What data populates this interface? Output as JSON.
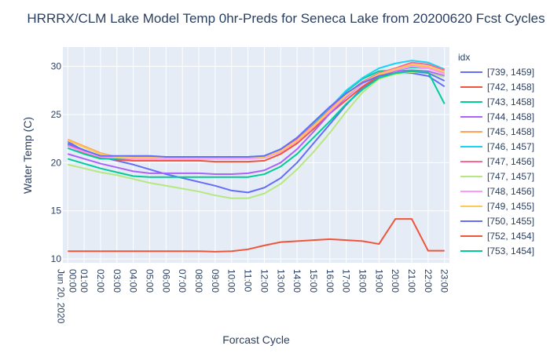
{
  "chart_data": {
    "type": "line",
    "title": "HRRRX/CLM Lake Model Temp 0hr-Preds for Seneca Lake from 20200620 Fcst Cycles",
    "xlabel": "Forcast Cycle",
    "ylabel": "Water Temp (C)",
    "x_tick_labels": [
      "00:00\nJun 20, 2020",
      "01:00",
      "02:00",
      "03:00",
      "04:00",
      "05:00",
      "06:00",
      "07:00",
      "08:00",
      "09:00",
      "10:00",
      "11:00",
      "12:00",
      "13:00",
      "14:00",
      "15:00",
      "16:00",
      "17:00",
      "18:00",
      "19:00",
      "20:00",
      "21:00",
      "22:00",
      "23:00"
    ],
    "x": [
      0,
      1,
      2,
      3,
      4,
      5,
      6,
      7,
      8,
      9,
      10,
      11,
      12,
      13,
      14,
      15,
      16,
      17,
      18,
      19,
      20,
      21,
      22,
      23
    ],
    "xlim": [
      -0.3,
      23.3
    ],
    "ylim": [
      9.6,
      32
    ],
    "y_ticks": [
      10,
      15,
      20,
      25,
      30
    ],
    "legend_title": "idx",
    "legend_position": "right",
    "grid": true,
    "series": [
      {
        "name": "[739, 1459]",
        "color": "#636efa",
        "values": [
          22.2,
          21.2,
          20.6,
          20.2,
          19.8,
          19.3,
          18.8,
          18.4,
          18.0,
          17.6,
          17.1,
          16.9,
          17.4,
          18.4,
          20.0,
          22.0,
          24.0,
          26.0,
          27.8,
          28.8,
          29.3,
          29.3,
          29.0,
          27.9
        ]
      },
      {
        "name": "[742, 1458]",
        "color": "#EF553B",
        "values": [
          21.8,
          21.0,
          20.5,
          20.3,
          20.2,
          20.2,
          20.2,
          20.2,
          20.2,
          20.1,
          20.1,
          20.1,
          20.2,
          20.9,
          22.0,
          23.5,
          25.1,
          26.5,
          27.9,
          29.0,
          29.5,
          30.2,
          29.9,
          29.2
        ]
      },
      {
        "name": "[743, 1458]",
        "color": "#00cc96",
        "values": [
          21.5,
          20.9,
          20.4,
          20.4,
          20.4,
          20.4,
          20.4,
          20.4,
          20.4,
          20.4,
          20.4,
          20.5,
          20.6,
          21.3,
          22.4,
          23.9,
          25.7,
          27.4,
          28.7,
          29.5,
          29.6,
          29.9,
          29.8,
          29.4
        ]
      },
      {
        "name": "[744, 1458]",
        "color": "#ab63fa",
        "values": [
          20.9,
          20.4,
          19.9,
          19.5,
          19.1,
          18.9,
          18.9,
          18.9,
          18.9,
          18.8,
          18.8,
          18.9,
          19.2,
          20.0,
          21.4,
          23.2,
          25.1,
          26.8,
          28.2,
          29.1,
          29.5,
          29.6,
          29.5,
          29.0
        ]
      },
      {
        "name": "[745, 1458]",
        "color": "#FFA15A",
        "values": [
          22.4,
          21.7,
          21.0,
          20.6,
          20.5,
          20.5,
          20.5,
          20.5,
          20.5,
          20.5,
          20.5,
          20.5,
          20.5,
          21.1,
          22.2,
          23.8,
          25.4,
          27.0,
          28.3,
          29.1,
          29.6,
          30.1,
          29.9,
          29.4
        ]
      },
      {
        "name": "[746, 1457]",
        "color": "#19d3f3",
        "values": [
          21.9,
          21.2,
          20.7,
          20.6,
          20.6,
          20.6,
          20.6,
          20.6,
          20.6,
          20.6,
          20.6,
          20.6,
          20.7,
          21.4,
          22.5,
          24.0,
          25.7,
          27.5,
          28.8,
          29.8,
          30.3,
          30.6,
          30.4,
          29.7
        ]
      },
      {
        "name": "[747, 1456]",
        "color": "#FF6692",
        "values": [
          21.8,
          21.2,
          20.7,
          20.5,
          20.5,
          20.5,
          20.5,
          20.5,
          20.5,
          20.5,
          20.5,
          20.5,
          20.6,
          21.3,
          22.4,
          23.9,
          25.5,
          27.1,
          28.4,
          29.3,
          29.8,
          30.4,
          30.2,
          29.6
        ]
      },
      {
        "name": "[747, 1457]",
        "color": "#B6E880",
        "values": [
          19.8,
          19.4,
          19.0,
          18.7,
          18.3,
          17.9,
          17.6,
          17.3,
          17.0,
          16.6,
          16.3,
          16.3,
          16.8,
          17.8,
          19.3,
          21.1,
          23.1,
          25.3,
          27.3,
          28.7,
          29.2,
          29.4,
          29.3,
          28.9
        ]
      },
      {
        "name": "[748, 1456]",
        "color": "#FF97FF",
        "values": [
          21.7,
          21.1,
          20.6,
          20.5,
          20.4,
          20.4,
          20.4,
          20.4,
          20.4,
          20.4,
          20.4,
          20.4,
          20.5,
          21.1,
          22.2,
          23.7,
          25.3,
          26.9,
          28.2,
          29.2,
          29.6,
          30.0,
          29.8,
          29.2
        ]
      },
      {
        "name": "[749, 1455]",
        "color": "#FECB52",
        "values": [
          22.3,
          21.6,
          20.9,
          20.6,
          20.5,
          20.5,
          20.5,
          20.5,
          20.5,
          20.5,
          20.5,
          20.5,
          20.6,
          21.2,
          22.3,
          23.8,
          25.4,
          27.0,
          28.3,
          29.2,
          29.7,
          30.2,
          30.0,
          29.4
        ]
      },
      {
        "name": "[750, 1455]",
        "color": "#636efa",
        "values": [
          22.0,
          21.3,
          20.7,
          20.7,
          20.7,
          20.7,
          20.6,
          20.6,
          20.6,
          20.6,
          20.6,
          20.6,
          20.7,
          21.4,
          22.6,
          24.2,
          25.8,
          27.2,
          28.3,
          29.0,
          29.3,
          29.5,
          29.3,
          28.5
        ]
      },
      {
        "name": "[752, 1454]",
        "color": "#EF553B",
        "values": [
          10.8,
          10.8,
          10.8,
          10.8,
          10.8,
          10.8,
          10.8,
          10.8,
          10.8,
          10.75,
          10.8,
          11.0,
          11.4,
          11.75,
          11.85,
          11.95,
          12.05,
          11.95,
          11.85,
          11.55,
          14.15,
          14.15,
          10.85,
          10.85
        ]
      },
      {
        "name": "[753, 1454]",
        "color": "#00cc96",
        "values": [
          20.4,
          19.9,
          19.4,
          19.0,
          18.6,
          18.5,
          18.5,
          18.5,
          18.5,
          18.5,
          18.5,
          18.5,
          18.8,
          19.6,
          20.9,
          22.6,
          24.3,
          26.1,
          27.6,
          28.8,
          29.3,
          29.5,
          29.4,
          26.1
        ]
      }
    ]
  }
}
